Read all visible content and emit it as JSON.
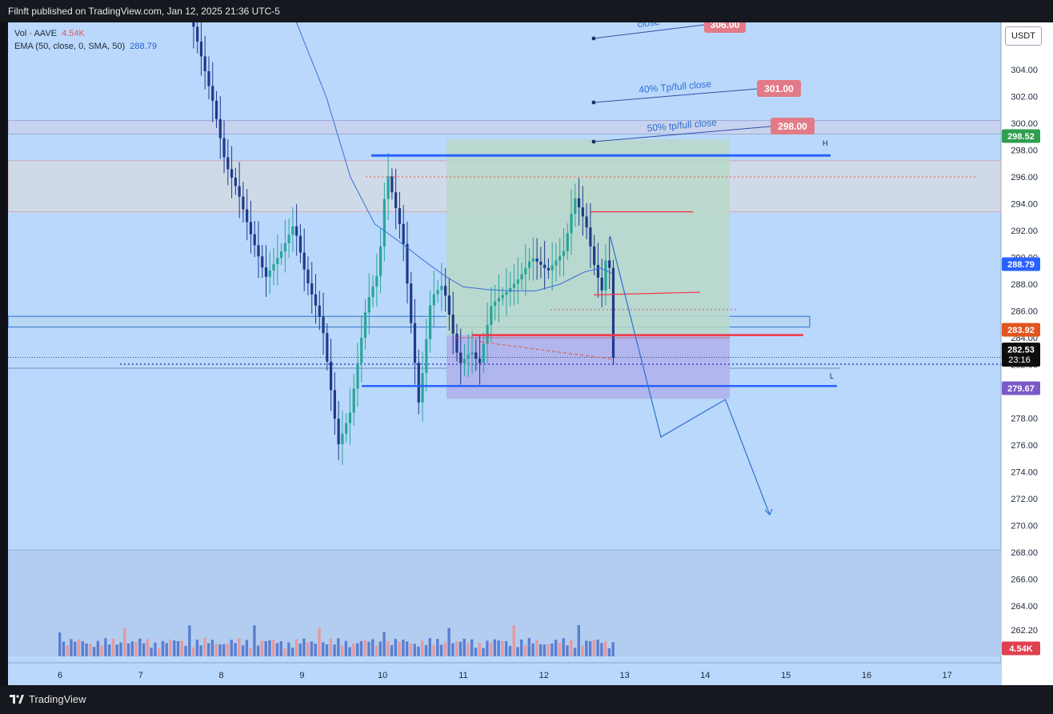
{
  "header": {
    "published": "Filnft published on TradingView.com, Jan 12, 2025 21:36 UTC-5"
  },
  "footer": {
    "brand": "TradingView"
  },
  "legend": {
    "vol_label": "Vol · AAVE",
    "vol_value": "4.54K",
    "ema_label": "EMA (50, close, 0, SMA, 50)",
    "ema_value": "288.79"
  },
  "currency_button": "USDT",
  "colors": {
    "background": "#bad8fb",
    "up_candle": "#27a69a",
    "down_candle": "#1e3a8a",
    "ema_line": "#3a6fd8",
    "volume_up": "#5a7fd0",
    "volume_down": "#e59a9f",
    "h_line": "#2962ff",
    "red_line": "#f23645",
    "zone_green": "#b9d8c8",
    "zone_purple": "#b0b3ec",
    "tp_label": "#e27b87"
  },
  "chart_data": {
    "type": "candlestick",
    "symbol": "AAVE/USDT",
    "ylim": [
      261.3,
      307.8
    ],
    "x_ticks": [
      "6",
      "7",
      "8",
      "9",
      "10",
      "11",
      "12",
      "13",
      "14",
      "15",
      "16",
      "17"
    ],
    "y_ticks": [
      262.2,
      264,
      266,
      268,
      270,
      272,
      274,
      276,
      278,
      280,
      282,
      284,
      286,
      288,
      290,
      292,
      294,
      296,
      298,
      300,
      302,
      304
    ],
    "price_badges": [
      {
        "value": "298.52",
        "color": "#2f9e4f"
      },
      {
        "value": "288.79",
        "color": "#2962ff"
      },
      {
        "value": "283.92",
        "color": "#e1561f"
      },
      {
        "value": "282.53",
        "sub": "23:16",
        "color": "#0d0d0d"
      },
      {
        "value": "279.67",
        "color": "#7b5ac8"
      },
      {
        "value": "4.54K",
        "color": "#e0404f"
      }
    ],
    "annotations": [
      {
        "text": "close",
        "value": "306.00"
      },
      {
        "text": "40% Tp/full close",
        "value": "301.00"
      },
      {
        "text": "50% tp/full close",
        "value": "298.00"
      }
    ],
    "level_labels": [
      "H",
      "L"
    ],
    "key_levels": {
      "H": 297.6,
      "L": 280.4,
      "entry": 284.2,
      "current": 282.53
    },
    "projected_path": [
      {
        "t": 12.82,
        "price": 291.6
      },
      {
        "t": 13.45,
        "price": 276.6
      },
      {
        "t": 14.25,
        "price": 279.4
      },
      {
        "t": 14.8,
        "price": 270.8
      }
    ]
  }
}
